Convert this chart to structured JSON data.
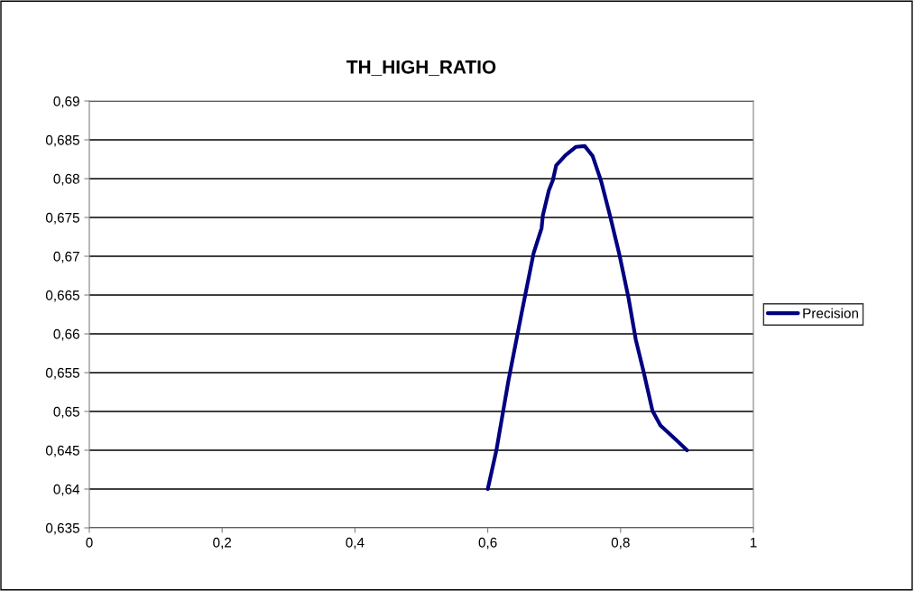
{
  "chart_data": {
    "type": "line",
    "title": "TH_HIGH_RATIO",
    "series": [
      {
        "name": "Precision",
        "color": "#000080",
        "x": [
          0.6,
          0.613,
          0.631,
          0.651,
          0.669,
          0.681,
          0.683,
          0.692,
          0.698,
          0.703,
          0.717,
          0.733,
          0.746,
          0.758,
          0.771,
          0.785,
          0.798,
          0.812,
          0.823,
          0.835,
          0.848,
          0.86,
          0.884,
          0.9
        ],
        "values": [
          0.64,
          0.645,
          0.6539,
          0.6627,
          0.6704,
          0.6736,
          0.6753,
          0.6785,
          0.6798,
          0.6817,
          0.683,
          0.6841,
          0.6842,
          0.6829,
          0.6796,
          0.6749,
          0.6703,
          0.6646,
          0.6592,
          0.655,
          0.6501,
          0.6482,
          0.6463,
          0.645
        ]
      }
    ],
    "xlim": [
      0,
      1
    ],
    "xticks": [
      0,
      {
        "value": 0.2,
        "label": "0,2"
      },
      {
        "value": 0.4,
        "label": "0,4"
      },
      {
        "value": 0.6,
        "label": "0,6"
      },
      {
        "value": 0.8,
        "label": "0,8"
      },
      1
    ],
    "ylim": [
      0.635,
      0.69
    ],
    "yticks": [
      {
        "value": 0.635,
        "label": "0,635"
      },
      {
        "value": 0.64,
        "label": "0,64"
      },
      {
        "value": 0.645,
        "label": "0,645"
      },
      {
        "value": 0.65,
        "label": "0,65"
      },
      {
        "value": 0.655,
        "label": "0,655"
      },
      {
        "value": 0.66,
        "label": "0,66"
      },
      {
        "value": 0.665,
        "label": "0,665"
      },
      {
        "value": 0.67,
        "label": "0,67"
      },
      {
        "value": 0.675,
        "label": "0,675"
      },
      {
        "value": 0.68,
        "label": "0,68"
      },
      {
        "value": 0.685,
        "label": "0,685"
      },
      {
        "value": 0.69,
        "label": "0,69"
      }
    ],
    "grid": "y",
    "legend": "right",
    "marker": "none",
    "line_style": "solid"
  }
}
